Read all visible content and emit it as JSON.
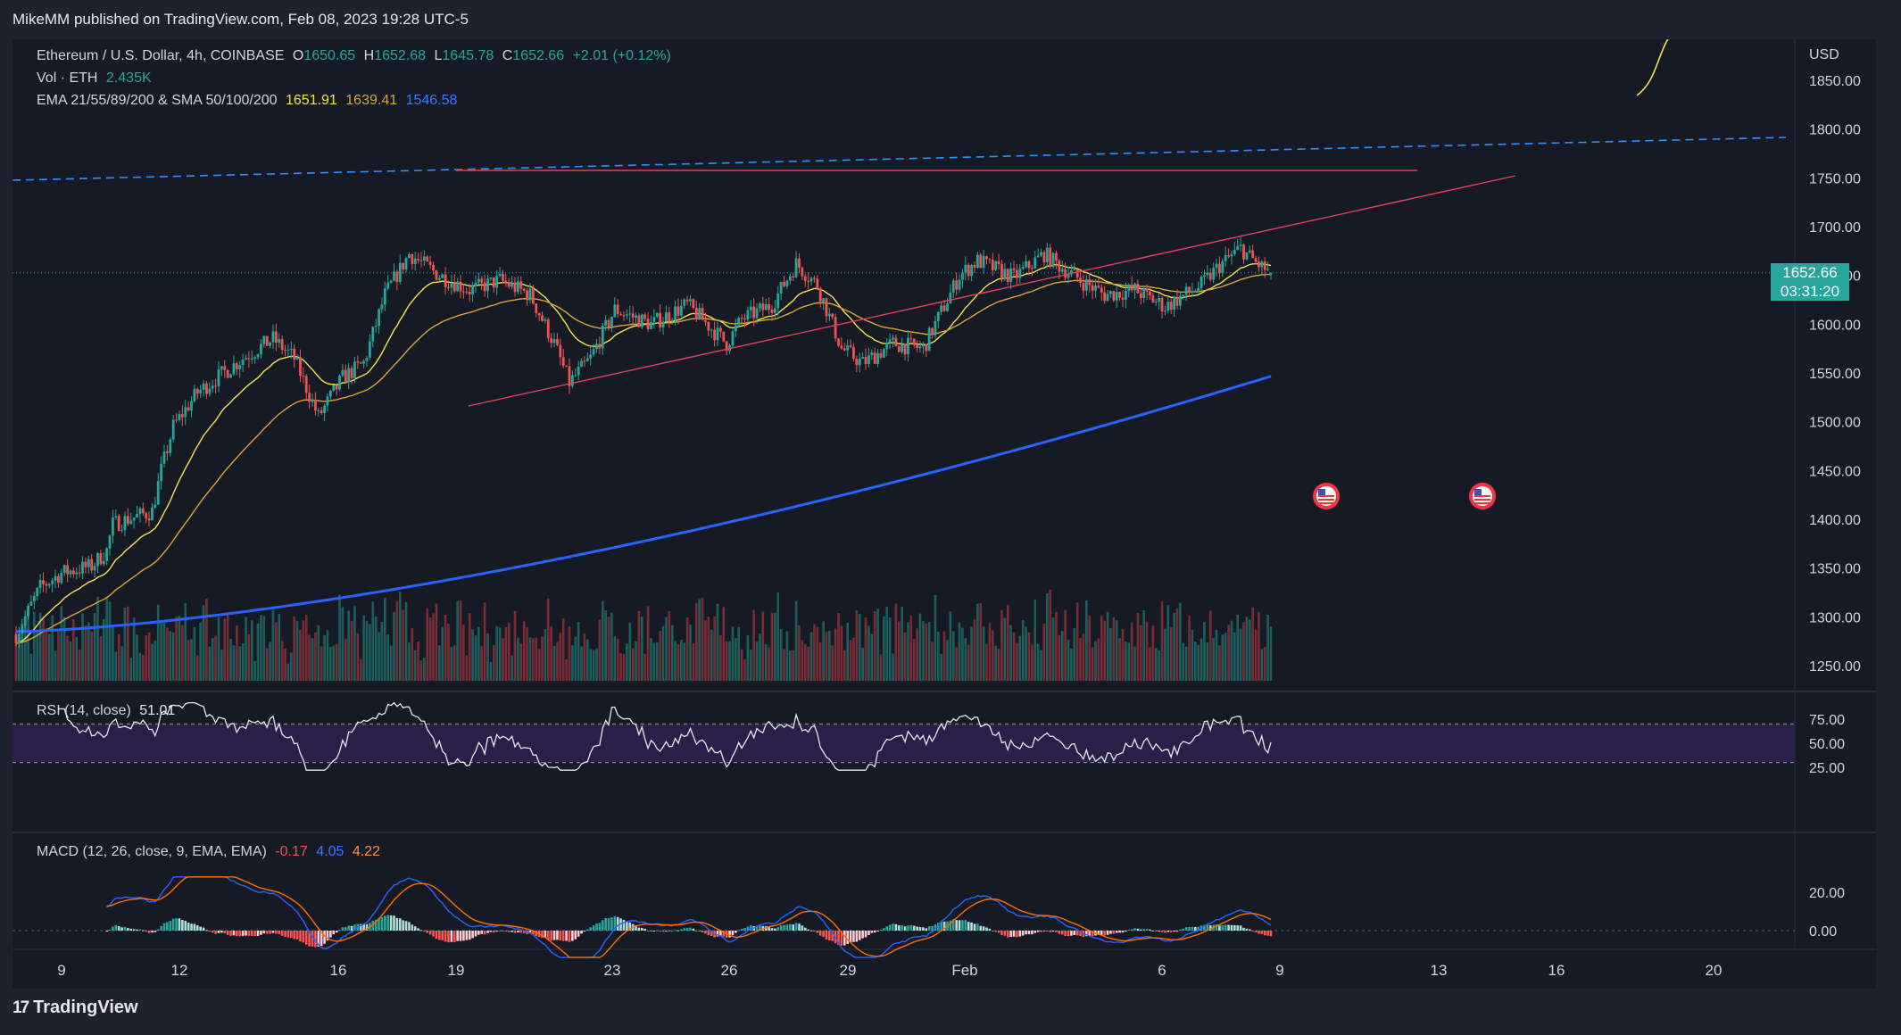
{
  "header": {
    "publisher": "MikeMM published on TradingView.com, Feb 08, 2023 19:28 UTC-5"
  },
  "legend": {
    "symbol": "Ethereum / U.S. Dollar, 4h, COINBASE",
    "o_label": "O",
    "o_value": "1650.65",
    "h_label": "H",
    "h_value": "1652.68",
    "l_label": "L",
    "l_value": "1645.78",
    "c_label": "C",
    "c_value": "1652.66",
    "change": "+2.01 (+0.12%)",
    "vol_label": "Vol · ETH",
    "vol_value": "2.435K",
    "ma_label": "EMA 21/55/89/200 & SMA 50/100/200",
    "ma_values": [
      "1651.91",
      "1639.41",
      "1546.58"
    ],
    "rsi_label": "RSI (14, close)",
    "rsi_value": "51.01",
    "macd_label": "MACD (12, 26, close, 9, EMA, EMA)",
    "macd_values": [
      "-0.17",
      "4.05",
      "4.22"
    ]
  },
  "price_tag": {
    "price": "1652.66",
    "countdown": "03:31:20"
  },
  "footer": {
    "brand_mark": "17",
    "brand": "TradingView"
  },
  "colors": {
    "bg": "#161a25",
    "up": "#26a69a",
    "down": "#ef5350",
    "ema21": "#f5e34b",
    "ema55": "#d9a43a",
    "sma200": "#2962ff",
    "channel_dashed": "#2f8fff",
    "wedge": "#e0415d",
    "rsi": "#e6e8ee",
    "rsi_band": "#2a1f48",
    "macd": "#2962ff",
    "signal": "#ff6d00"
  },
  "icons": [
    "us-flag-event-icon",
    "us-flag-event-icon"
  ],
  "chart_data": {
    "type": "candlestick",
    "title": "Ethereum / U.S. Dollar, 4h, COINBASE",
    "currency": "USD",
    "ylim": [
      1220,
      1895
    ],
    "yticks": [
      "1850.00",
      "1800.00",
      "1750.00",
      "1700.00",
      "1650.00",
      "1600.00",
      "1550.00",
      "1500.00",
      "1450.00",
      "1400.00",
      "1350.00",
      "1300.00",
      "1250.00"
    ],
    "xticks": [
      "9",
      "12",
      "16",
      "19",
      "23",
      "26",
      "29",
      "Feb",
      "6",
      "9",
      "13",
      "16",
      "20"
    ],
    "ohlc_last": {
      "open": 1650.65,
      "high": 1652.68,
      "low": 1645.78,
      "close": 1652.66
    },
    "anchors": [
      [
        0,
        1282
      ],
      [
        8,
        1330
      ],
      [
        15,
        1345
      ],
      [
        25,
        1352
      ],
      [
        30,
        1368
      ],
      [
        32,
        1395
      ],
      [
        45,
        1408
      ],
      [
        48,
        1450
      ],
      [
        52,
        1495
      ],
      [
        60,
        1530
      ],
      [
        75,
        1565
      ],
      [
        85,
        1585
      ],
      [
        92,
        1565
      ],
      [
        100,
        1505
      ],
      [
        108,
        1545
      ],
      [
        115,
        1560
      ],
      [
        122,
        1630
      ],
      [
        130,
        1672
      ],
      [
        140,
        1650
      ],
      [
        150,
        1635
      ],
      [
        160,
        1645
      ],
      [
        170,
        1630
      ],
      [
        178,
        1580
      ],
      [
        183,
        1540
      ],
      [
        190,
        1565
      ],
      [
        198,
        1615
      ],
      [
        210,
        1600
      ],
      [
        222,
        1620
      ],
      [
        235,
        1580
      ],
      [
        240,
        1605
      ],
      [
        250,
        1620
      ],
      [
        258,
        1662
      ],
      [
        265,
        1640
      ],
      [
        273,
        1575
      ],
      [
        280,
        1560
      ],
      [
        290,
        1580
      ],
      [
        300,
        1575
      ],
      [
        308,
        1625
      ],
      [
        312,
        1650
      ],
      [
        318,
        1665
      ],
      [
        330,
        1648
      ],
      [
        340,
        1672
      ],
      [
        345,
        1660
      ],
      [
        352,
        1645
      ],
      [
        360,
        1630
      ],
      [
        370,
        1635
      ],
      [
        380,
        1618
      ],
      [
        392,
        1640
      ],
      [
        398,
        1660
      ],
      [
        405,
        1678
      ],
      [
        410,
        1663
      ],
      [
        415,
        1652
      ]
    ],
    "indicators": {
      "ema21": "1651.91",
      "ema55": "1639.41",
      "sma200": "1546.58",
      "rsi": {
        "value": 51.01,
        "levels": [
          25,
          50,
          75
        ],
        "band": [
          30,
          70
        ]
      },
      "macd": {
        "params": "12, 26, close, 9",
        "histogram": -0.17,
        "macd": 4.05,
        "signal": 4.22,
        "levels": [
          0,
          20
        ]
      }
    },
    "volume": {
      "last": "2.435K"
    }
  }
}
